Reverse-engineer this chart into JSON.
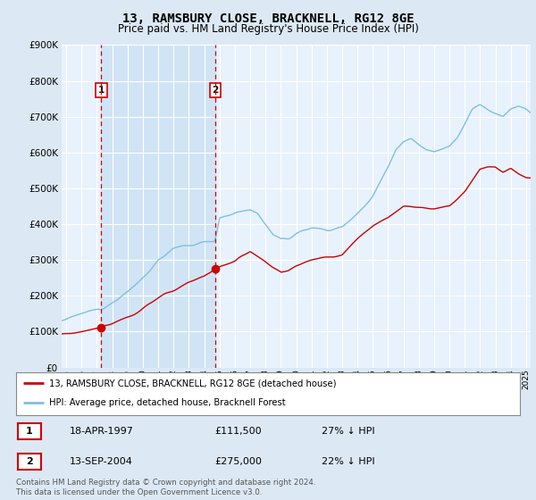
{
  "title1": "13, RAMSBURY CLOSE, BRACKNELL, RG12 8GE",
  "title2": "Price paid vs. HM Land Registry's House Price Index (HPI)",
  "ylim": [
    0,
    900000
  ],
  "yticks": [
    0,
    100000,
    200000,
    300000,
    400000,
    500000,
    600000,
    700000,
    800000,
    900000
  ],
  "ytick_labels": [
    "£0",
    "£100K",
    "£200K",
    "£300K",
    "£400K",
    "£500K",
    "£600K",
    "£700K",
    "£800K",
    "£900K"
  ],
  "xmin": 1994.7,
  "xmax": 2025.3,
  "hpi_color": "#7fbfdf",
  "price_color": "#cc0000",
  "shade_color": "#d0e4f5",
  "sale1_x": 1997.29,
  "sale1_y": 111500,
  "sale1_label": "1",
  "sale1_date": "18-APR-1997",
  "sale1_price": "£111,500",
  "sale1_hpi": "27% ↓ HPI",
  "sale2_x": 2004.71,
  "sale2_y": 275000,
  "sale2_label": "2",
  "sale2_date": "13-SEP-2004",
  "sale2_price": "£275,000",
  "sale2_hpi": "22% ↓ HPI",
  "legend_label1": "13, RAMSBURY CLOSE, BRACKNELL, RG12 8GE (detached house)",
  "legend_label2": "HPI: Average price, detached house, Bracknell Forest",
  "footer": "Contains HM Land Registry data © Crown copyright and database right 2024.\nThis data is licensed under the Open Government Licence v3.0.",
  "bg_color": "#dce9f5",
  "plot_bg": "#e8f2fc",
  "grid_color": "#ffffff",
  "title_fontsize": 10,
  "subtitle_fontsize": 8.5,
  "hpi_anchors_x": [
    1994.7,
    1995.0,
    1996.0,
    1997.0,
    1997.3,
    1998.0,
    1999.0,
    2000.0,
    2001.0,
    2002.0,
    2003.0,
    2004.0,
    2004.7,
    2005.0,
    2006.0,
    2007.0,
    2007.5,
    2008.0,
    2008.5,
    2009.0,
    2009.5,
    2010.0,
    2011.0,
    2012.0,
    2013.0,
    2014.0,
    2015.0,
    2016.0,
    2016.5,
    2017.0,
    2017.5,
    2018.0,
    2018.5,
    2019.0,
    2019.5,
    2020.0,
    2020.5,
    2021.0,
    2021.5,
    2022.0,
    2022.5,
    2023.0,
    2023.5,
    2024.0,
    2024.5,
    2025.0,
    2025.3
  ],
  "hpi_anchors_y": [
    130000,
    132000,
    150000,
    162000,
    165000,
    185000,
    210000,
    250000,
    300000,
    330000,
    340000,
    350000,
    355000,
    420000,
    430000,
    440000,
    430000,
    400000,
    370000,
    355000,
    360000,
    375000,
    390000,
    385000,
    390000,
    430000,
    480000,
    560000,
    610000,
    630000,
    640000,
    625000,
    610000,
    605000,
    610000,
    615000,
    640000,
    680000,
    720000,
    730000,
    720000,
    710000,
    700000,
    720000,
    730000,
    720000,
    710000
  ],
  "pp_anchors_x": [
    1994.7,
    1995.0,
    1996.0,
    1997.0,
    1997.29,
    1998.0,
    1999.0,
    2000.0,
    2001.0,
    2002.0,
    2003.0,
    2004.0,
    2004.71,
    2005.5,
    2006.0,
    2007.0,
    2008.0,
    2009.0,
    2009.5,
    2010.0,
    2011.0,
    2012.0,
    2013.0,
    2014.0,
    2015.0,
    2016.0,
    2017.0,
    2018.0,
    2019.0,
    2020.0,
    2021.0,
    2022.0,
    2022.5,
    2023.0,
    2023.5,
    2024.0,
    2024.5,
    2025.0,
    2025.3
  ],
  "pp_anchors_y": [
    93000,
    95000,
    100000,
    108000,
    111500,
    120000,
    140000,
    165000,
    195000,
    215000,
    240000,
    255000,
    275000,
    290000,
    295000,
    325000,
    295000,
    265000,
    270000,
    285000,
    300000,
    305000,
    315000,
    360000,
    395000,
    420000,
    450000,
    445000,
    445000,
    450000,
    490000,
    555000,
    560000,
    560000,
    545000,
    555000,
    540000,
    530000,
    530000
  ]
}
